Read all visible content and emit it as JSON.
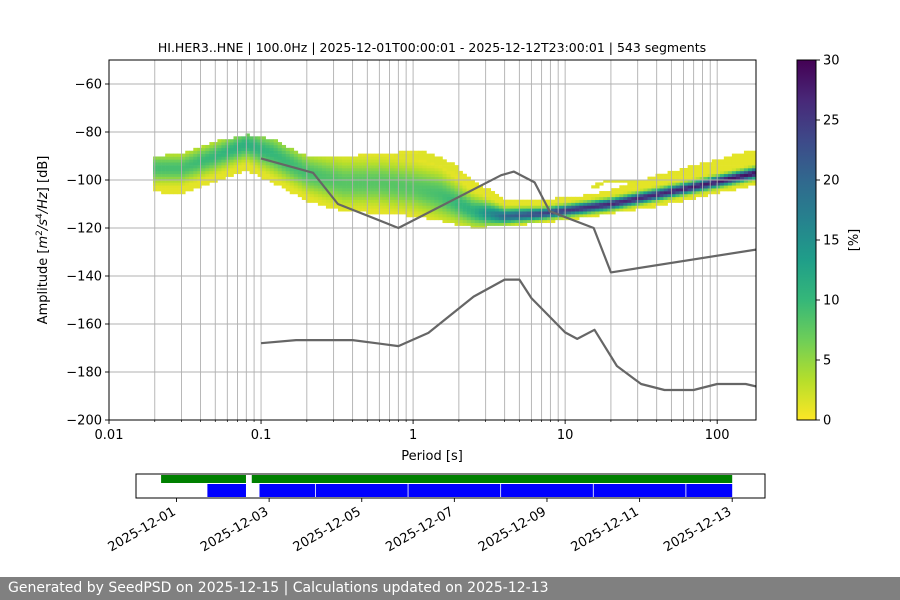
{
  "chart_data": {
    "type": "heatmap",
    "title": "HI.HER3..HNE | 100.0Hz | 2025-12-01T00:00:01 - 2025-12-12T23:00:01 | 543 segments",
    "xlabel": "Period [s]",
    "ylabel_parts": [
      "Amplitude [",
      "m",
      "2",
      "/",
      "s",
      "4",
      "/",
      "Hz",
      "] [dB]"
    ],
    "x_scale": "log",
    "xlim": [
      0.01,
      180
    ],
    "ylim": [
      -200,
      -50
    ],
    "x_ticks": [
      {
        "value": 0.01,
        "label": "0.01"
      },
      {
        "value": 0.1,
        "label": "0.1"
      },
      {
        "value": 1,
        "label": "1"
      },
      {
        "value": 10,
        "label": "10"
      },
      {
        "value": 100,
        "label": "100"
      }
    ],
    "y_ticks": [
      {
        "value": -60,
        "label": "−60"
      },
      {
        "value": -80,
        "label": "−80"
      },
      {
        "value": -100,
        "label": "−100"
      },
      {
        "value": -120,
        "label": "−120"
      },
      {
        "value": -140,
        "label": "−140"
      },
      {
        "value": -160,
        "label": "−160"
      },
      {
        "value": -180,
        "label": "−180"
      },
      {
        "value": -200,
        "label": "−200"
      }
    ],
    "grid": true,
    "colorbar": {
      "label": "[%]",
      "min": 0,
      "max": 30,
      "ticks": [
        {
          "value": 0,
          "label": "0"
        },
        {
          "value": 5,
          "label": "5"
        },
        {
          "value": 10,
          "label": "10"
        },
        {
          "value": 15,
          "label": "15"
        },
        {
          "value": 20,
          "label": "20"
        },
        {
          "value": 25,
          "label": "25"
        },
        {
          "value": 30,
          "label": "30"
        }
      ],
      "colormap": "viridis_r",
      "stops": [
        "#fde725",
        "#b5de2b",
        "#6ece58",
        "#35b779",
        "#1f9e89",
        "#26828e",
        "#31688e",
        "#3e4989",
        "#482878",
        "#440154"
      ]
    },
    "psd_band": {
      "period_grid_edges_hint": "per-column distribution",
      "columns": [
        {
          "period": 0.02,
          "mode": -95,
          "spread": 4,
          "peak": 9,
          "p_lo": -105,
          "p_hi": -90
        },
        {
          "period": 0.03,
          "mode": -95,
          "spread": 4,
          "peak": 9,
          "p_lo": -106,
          "p_hi": -89
        },
        {
          "period": 0.05,
          "mode": -90,
          "spread": 4,
          "peak": 10,
          "p_lo": -101,
          "p_hi": -84
        },
        {
          "period": 0.08,
          "mode": -85,
          "spread": 4,
          "peak": 11,
          "p_lo": -96,
          "p_hi": -81
        },
        {
          "period": 0.12,
          "mode": -89,
          "spread": 5,
          "peak": 10,
          "p_lo": -101,
          "p_hi": -83
        },
        {
          "period": 0.2,
          "mode": -97,
          "spread": 5,
          "peak": 9,
          "p_lo": -109,
          "p_hi": -90
        },
        {
          "period": 0.35,
          "mode": -101,
          "spread": 6,
          "peak": 8,
          "p_lo": -113,
          "p_hi": -90
        },
        {
          "period": 0.6,
          "mode": -101,
          "spread": 6,
          "peak": 8,
          "p_lo": -114,
          "p_hi": -89
        },
        {
          "period": 1.0,
          "mode": -103,
          "spread": 6,
          "peak": 8,
          "p_lo": -115,
          "p_hi": -88
        },
        {
          "period": 1.5,
          "mode": -106,
          "spread": 6,
          "peak": 9,
          "p_lo": -117,
          "p_hi": -90
        },
        {
          "period": 2.5,
          "mode": -113,
          "spread": 4,
          "peak": 11,
          "p_lo": -120,
          "p_hi": -100
        },
        {
          "period": 4,
          "mode": -115,
          "spread": 2,
          "peak": 20,
          "p_lo": -119,
          "p_hi": -108
        },
        {
          "period": 7,
          "mode": -114,
          "spread": 1.5,
          "peak": 24,
          "p_lo": -118,
          "p_hi": -108
        },
        {
          "period": 12,
          "mode": -112,
          "spread": 1.5,
          "peak": 26,
          "p_lo": -116,
          "p_hi": -107
        },
        {
          "period": 20,
          "mode": -110,
          "spread": 1.5,
          "peak": 27,
          "p_lo": -114,
          "p_hi": -104
        },
        {
          "period": 40,
          "mode": -106,
          "spread": 1.5,
          "peak": 27,
          "p_lo": -111,
          "p_hi": -98
        },
        {
          "period": 80,
          "mode": -102,
          "spread": 1.5,
          "peak": 28,
          "p_lo": -107,
          "p_hi": -93
        },
        {
          "period": 180,
          "mode": -97,
          "spread": 1.5,
          "peak": 29,
          "p_lo": -102,
          "p_hi": -87
        }
      ],
      "secondary_hump": [
        {
          "period": 0.5,
          "level": -92
        },
        {
          "period": 1.2,
          "level": -89
        },
        {
          "period": 2.0,
          "level": -95
        }
      ],
      "micro_hump": [
        {
          "period": 15,
          "level": -103
        },
        {
          "period": 20,
          "level": -100
        },
        {
          "period": 30,
          "level": -101
        }
      ]
    },
    "series": [
      {
        "role": "high_noise_model",
        "color": "#666666",
        "points": [
          [
            0.1,
            -91
          ],
          [
            0.22,
            -97
          ],
          [
            0.32,
            -110
          ],
          [
            0.8,
            -120
          ],
          [
            3.8,
            -98
          ],
          [
            4.6,
            -96.5
          ],
          [
            6.3,
            -101
          ],
          [
            7.9,
            -113
          ],
          [
            15.4,
            -120
          ],
          [
            20,
            -138.5
          ],
          [
            180,
            -129
          ]
        ]
      },
      {
        "role": "low_noise_model",
        "color": "#666666",
        "points": [
          [
            0.1,
            -168
          ],
          [
            0.17,
            -166.7
          ],
          [
            0.4,
            -166.7
          ],
          [
            0.8,
            -169.2
          ],
          [
            1.26,
            -163.7
          ],
          [
            2.5,
            -148.6
          ],
          [
            4.0,
            -141.5
          ],
          [
            5.0,
            -141.5
          ],
          [
            6.0,
            -149.2
          ],
          [
            10,
            -163.5
          ],
          [
            12,
            -166.2
          ],
          [
            15.6,
            -162.4
          ],
          [
            21.9,
            -177.5
          ],
          [
            31.6,
            -185
          ],
          [
            45,
            -187.5
          ],
          [
            70,
            -187.5
          ],
          [
            100,
            -185
          ],
          [
            154,
            -185
          ],
          [
            180,
            -186
          ]
        ]
      }
    ]
  },
  "timeline": {
    "date_labels": [
      "2025-12-01",
      "2025-12-03",
      "2025-12-05",
      "2025-12-07",
      "2025-12-09",
      "2025-12-11",
      "2025-12-13"
    ],
    "range_start": "2025-11-30T03:00",
    "range_end": "2025-12-13T17:00",
    "green_segments": [
      [
        "2025-11-30T16:00",
        "2025-12-02T12:00"
      ],
      [
        "2025-12-02T15:00",
        "2025-12-13T00:00"
      ]
    ],
    "blue_segments": [
      [
        "2025-12-01T16:00",
        "2025-12-02T12:00"
      ],
      [
        "2025-12-02T19:00",
        "2025-12-13T00:00"
      ]
    ],
    "blue_dividers": [
      "2025-12-04",
      "2025-12-06",
      "2025-12-08",
      "2025-12-10",
      "2025-12-12"
    ],
    "green_color": "#008000",
    "blue_color": "#0000ff"
  },
  "footer": {
    "text": "Generated by SeedPSD on 2025-12-15 | Calculations updated on 2025-12-13"
  }
}
